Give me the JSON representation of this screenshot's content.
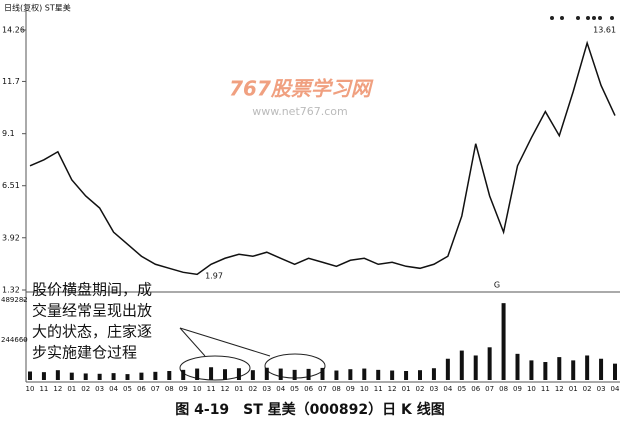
{
  "chart_data": [
    {
      "type": "line",
      "title": "日线(复权) ST星美",
      "color": "#111111",
      "values": [
        7.5,
        7.8,
        8.2,
        6.8,
        6.0,
        5.4,
        4.2,
        3.6,
        3.0,
        2.6,
        2.4,
        2.2,
        2.1,
        2.6,
        2.9,
        3.1,
        3.0,
        3.2,
        2.9,
        2.6,
        2.9,
        2.7,
        2.5,
        2.8,
        2.9,
        2.6,
        2.7,
        2.5,
        2.4,
        2.6,
        3.0,
        5.0,
        8.6,
        6.0,
        4.2,
        7.5,
        8.9,
        10.2,
        9.0,
        11.2,
        13.61,
        11.5,
        10.0
      ],
      "ylim": [
        1.32,
        14.26
      ],
      "yticks": [
        1.32,
        3.92,
        6.51,
        9.1,
        11.7,
        14.26
      ],
      "annotations": [
        "1.97",
        "13.61",
        "G"
      ],
      "watermark": [
        "767股票学习网",
        "www.net767.com"
      ],
      "note": [
        "股价横盘期间，成",
        "交量经常呈现出放",
        "大的状态，庄家逐",
        "步实施建仓过程"
      ],
      "caption": "图 4-19　ST 星美（000892）日 K 线图"
    },
    {
      "type": "bar",
      "color": "#111111",
      "categories": [
        "10",
        "11",
        "12",
        "01",
        "02",
        "03",
        "04",
        "05",
        "06",
        "07",
        "08",
        "09",
        "10",
        "11",
        "12",
        "01",
        "02",
        "03",
        "04",
        "05",
        "06",
        "07",
        "08",
        "09",
        "10",
        "11",
        "12",
        "01",
        "02",
        "03",
        "04",
        "05",
        "06",
        "07",
        "08",
        "09",
        "10",
        "11",
        "12",
        "01",
        "02",
        "03",
        "04"
      ],
      "values": [
        52000,
        48000,
        60000,
        45000,
        40000,
        38000,
        42000,
        36000,
        45000,
        50000,
        55000,
        62000,
        70000,
        78000,
        66000,
        72000,
        60000,
        75000,
        70000,
        62000,
        68000,
        74000,
        58000,
        66000,
        70000,
        62000,
        58000,
        55000,
        60000,
        72000,
        130000,
        180000,
        150000,
        200000,
        470000,
        160000,
        120000,
        110000,
        140000,
        120000,
        150000,
        130000,
        100000
      ],
      "ylim": [
        0,
        489282
      ],
      "yticks": [
        489282,
        244660
      ]
    }
  ]
}
